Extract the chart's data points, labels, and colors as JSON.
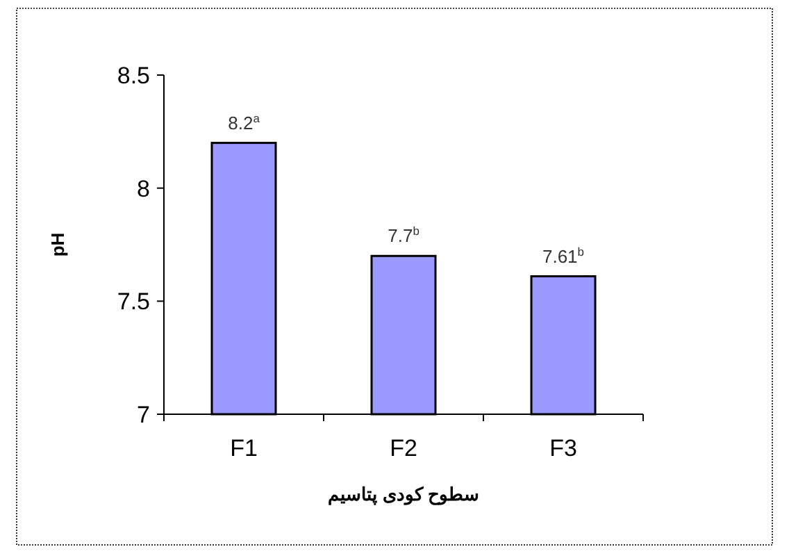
{
  "chart_data": {
    "type": "bar",
    "categories": [
      "F1",
      "F2",
      "F3"
    ],
    "values": [
      8.2,
      7.7,
      7.61
    ],
    "value_labels": [
      "8.2$^{a}$",
      "7.7$^{b}$",
      "7.61$^{b}$"
    ],
    "color": "#9999ff",
    "ylabel": "pH",
    "xlabel": "سطوح کودی پتاسیم",
    "ylim": [
      7,
      8.5
    ],
    "yticks": [
      7,
      7.5,
      8,
      8.5
    ],
    "grid": false
  }
}
